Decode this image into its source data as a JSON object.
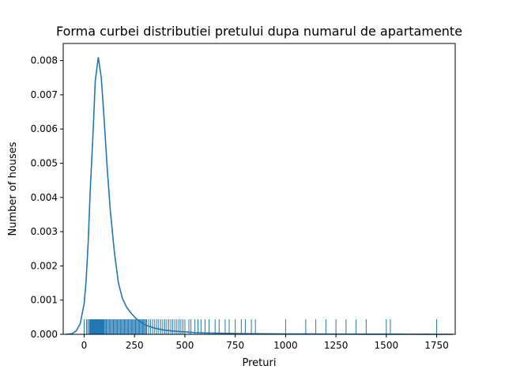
{
  "chart_data": {
    "type": "line",
    "title": "Forma curbei distributiei pretului dupa numarul de apartamente",
    "xlabel": "Preturi",
    "ylabel": "Number of houses",
    "xlim": [
      -104,
      1842
    ],
    "ylim": [
      0,
      0.0085
    ],
    "x_ticks": [
      0,
      250,
      500,
      750,
      1000,
      1250,
      1500,
      1750
    ],
    "y_ticks": [
      0.0,
      0.001,
      0.002,
      0.003,
      0.004,
      0.005,
      0.006,
      0.007,
      0.008
    ],
    "y_tick_labels": [
      "0.000",
      "0.001",
      "0.002",
      "0.003",
      "0.004",
      "0.005",
      "0.006",
      "0.007",
      "0.008"
    ],
    "grid": false,
    "line_color": "#1f77b4",
    "series": [
      {
        "kind": "kde",
        "x": [
          -90,
          -60,
          -40,
          -20,
          0,
          10,
          20,
          30,
          45,
          55,
          70,
          85,
          100,
          115,
          130,
          150,
          170,
          190,
          210,
          235,
          260,
          300,
          350,
          400,
          450,
          500,
          550,
          600,
          700,
          800,
          900,
          1000,
          1100,
          1200,
          1300,
          1400,
          1500,
          1600,
          1700,
          1830
        ],
        "y": [
          0.0,
          2e-05,
          0.0001,
          0.0003,
          0.0009,
          0.0016,
          0.0027,
          0.0042,
          0.006,
          0.0074,
          0.0081,
          0.0075,
          0.0062,
          0.0048,
          0.0036,
          0.0024,
          0.0015,
          0.00105,
          0.0008,
          0.0006,
          0.00045,
          0.00028,
          0.00018,
          0.00012,
          9e-05,
          7e-05,
          5e-05,
          4e-05,
          3e-05,
          2e-05,
          1.5e-05,
          1e-05,
          1e-05,
          8e-06,
          6e-06,
          5e-06,
          4e-06,
          3e-06,
          2e-06,
          0.0
        ]
      },
      {
        "kind": "rug",
        "x": [
          0,
          12,
          18,
          25,
          28,
          30,
          33,
          35,
          38,
          40,
          42,
          45,
          48,
          50,
          52,
          55,
          58,
          60,
          62,
          65,
          68,
          70,
          72,
          75,
          78,
          80,
          82,
          85,
          88,
          90,
          92,
          95,
          98,
          100,
          105,
          110,
          115,
          120,
          125,
          130,
          135,
          140,
          145,
          150,
          155,
          160,
          165,
          170,
          175,
          180,
          185,
          190,
          195,
          200,
          205,
          210,
          215,
          220,
          225,
          230,
          235,
          240,
          245,
          250,
          255,
          260,
          265,
          270,
          275,
          280,
          285,
          290,
          295,
          300,
          305,
          310,
          320,
          330,
          340,
          350,
          360,
          370,
          380,
          390,
          400,
          410,
          420,
          430,
          440,
          450,
          460,
          470,
          480,
          490,
          500,
          520,
          530,
          550,
          565,
          580,
          600,
          620,
          650,
          670,
          700,
          720,
          750,
          780,
          800,
          830,
          850,
          1000,
          1100,
          1150,
          1200,
          1250,
          1300,
          1350,
          1400,
          1500,
          1520,
          1750
        ]
      }
    ]
  }
}
